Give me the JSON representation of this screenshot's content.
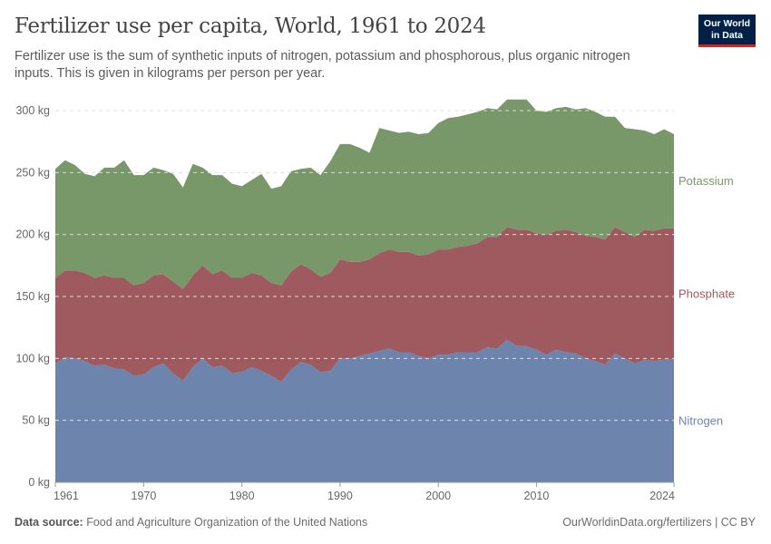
{
  "header": {
    "title": "Fertilizer use per capita, World, 1961 to 2024",
    "subtitle": "Fertilizer use is the sum of synthetic inputs of nitrogen, potassium and phosphorous, plus organic nitrogen inputs. This is given in kilograms per person per year.",
    "logo": "Our World in Data"
  },
  "footer": {
    "source_label": "Data source:",
    "source": "Food and Agriculture Organization of the United Nations",
    "link": "OurWorldinData.org/fertilizers | CC BY"
  },
  "chart_data": {
    "type": "area",
    "stacked": true,
    "title": "Fertilizer use per capita, World, 1961 to 2024",
    "xlim": [
      1961,
      2024
    ],
    "ylim": [
      0,
      300
    ],
    "yticks": [
      0,
      50,
      100,
      150,
      200,
      250,
      300
    ],
    "ytick_labels": [
      "0 kg",
      "50 kg",
      "100 kg",
      "150 kg",
      "200 kg",
      "250 kg",
      "300 kg"
    ],
    "xticks": [
      1961,
      1970,
      1980,
      1990,
      2000,
      2010,
      2024
    ],
    "xtick_labels": [
      "1961",
      "1970",
      "1980",
      "1990",
      "2000",
      "2010",
      "2024"
    ],
    "grid": "horizontal dashed",
    "legend": "right, inline labels",
    "x_start": 1961,
    "series": [
      {
        "name": "Nitrogen",
        "color": "#6d84ad",
        "values": [
          96,
          101,
          100,
          98,
          94,
          95,
          92,
          91,
          86,
          87,
          93,
          96,
          88,
          82,
          93,
          100,
          93,
          94,
          88,
          89,
          93,
          90,
          86,
          81,
          91,
          97,
          95,
          89,
          90,
          100,
          100,
          102,
          104,
          106,
          108,
          105,
          105,
          102,
          100,
          103,
          103,
          105,
          105,
          105,
          109,
          108,
          115,
          110,
          110,
          107,
          103,
          107,
          105,
          104,
          100,
          98,
          95,
          104,
          100,
          96,
          99,
          98,
          99,
          99
        ]
      },
      {
        "name": "Phosphate",
        "color": "#9e5a5f",
        "values": [
          69,
          70,
          71,
          71,
          71,
          72,
          73,
          74,
          73,
          74,
          74,
          72,
          74,
          74,
          74,
          75,
          75,
          77,
          77,
          76,
          76,
          77,
          75,
          78,
          79,
          79,
          77,
          77,
          79,
          80,
          78,
          76,
          76,
          79,
          80,
          81,
          81,
          81,
          84,
          85,
          85,
          85,
          86,
          88,
          89,
          90,
          91,
          94,
          94,
          94,
          97,
          96,
          99,
          98,
          99,
          100,
          101,
          102,
          102,
          102,
          105,
          105,
          106,
          106
        ]
      },
      {
        "name": "Potassium",
        "color": "#79986a",
        "values": [
          88,
          89,
          85,
          80,
          82,
          87,
          89,
          95,
          89,
          87,
          87,
          84,
          87,
          82,
          90,
          79,
          80,
          77,
          76,
          74,
          75,
          82,
          76,
          80,
          81,
          77,
          82,
          82,
          90,
          93,
          95,
          92,
          86,
          101,
          96,
          96,
          97,
          98,
          98,
          102,
          106,
          105,
          106,
          106,
          104,
          103,
          103,
          105,
          105,
          99,
          99,
          99,
          99,
          99,
          103,
          101,
          99,
          89,
          84,
          87,
          80,
          78,
          80,
          76
        ]
      }
    ]
  }
}
